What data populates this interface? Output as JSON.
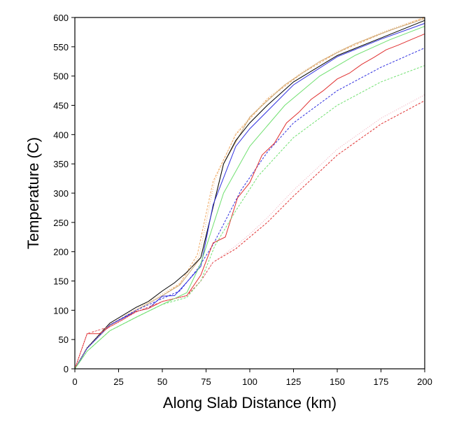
{
  "chart_data": {
    "type": "line",
    "title": "",
    "xlabel": "Along Slab Distance (km)",
    "ylabel": "Temperature (C)",
    "xlim": [
      0,
      200
    ],
    "ylim": [
      0,
      600
    ],
    "xticks": [
      0,
      25,
      50,
      75,
      100,
      125,
      150,
      175,
      200
    ],
    "yticks": [
      0,
      50,
      100,
      150,
      200,
      250,
      300,
      350,
      400,
      450,
      500,
      550,
      600
    ],
    "grid": false,
    "legend": "none",
    "series": [
      {
        "color": "#f0a860",
        "dash": "3,2",
        "points": [
          [
            0,
            0
          ],
          [
            7,
            35
          ],
          [
            20,
            75
          ],
          [
            35,
            100
          ],
          [
            50,
            125
          ],
          [
            60,
            145
          ],
          [
            70,
            195
          ],
          [
            79,
            320
          ],
          [
            92,
            400
          ],
          [
            110,
            460
          ],
          [
            130,
            505
          ],
          [
            150,
            540
          ],
          [
            175,
            572
          ],
          [
            200,
            600
          ]
        ]
      },
      {
        "color": "#c8a878",
        "dash": "",
        "points": [
          [
            0,
            0
          ],
          [
            7,
            35
          ],
          [
            20,
            74
          ],
          [
            35,
            100
          ],
          [
            50,
            125
          ],
          [
            60,
            143
          ],
          [
            72,
            190
          ],
          [
            85,
            350
          ],
          [
            100,
            430
          ],
          [
            120,
            485
          ],
          [
            140,
            525
          ],
          [
            160,
            555
          ],
          [
            180,
            578
          ],
          [
            200,
            598
          ]
        ]
      },
      {
        "color": "#000000",
        "dash": "",
        "points": [
          [
            0,
            0
          ],
          [
            7,
            36
          ],
          [
            20,
            78
          ],
          [
            35,
            105
          ],
          [
            42,
            115
          ],
          [
            50,
            133
          ],
          [
            57,
            147
          ],
          [
            64,
            165
          ],
          [
            72,
            190
          ],
          [
            85,
            350
          ],
          [
            92,
            390
          ],
          [
            100,
            420
          ],
          [
            110,
            450
          ],
          [
            125,
            490
          ],
          [
            150,
            535
          ],
          [
            175,
            565
          ],
          [
            200,
            595
          ]
        ]
      },
      {
        "color": "#3030e0",
        "dash": "3,2",
        "points": [
          [
            0,
            0
          ],
          [
            7,
            35
          ],
          [
            20,
            75
          ],
          [
            35,
            100
          ],
          [
            50,
            120
          ],
          [
            60,
            133
          ],
          [
            70,
            170
          ],
          [
            79,
            212
          ],
          [
            95,
            305
          ],
          [
            110,
            370
          ],
          [
            125,
            420
          ],
          [
            150,
            475
          ],
          [
            175,
            515
          ],
          [
            200,
            548
          ]
        ]
      },
      {
        "color": "#3030e0",
        "dash": "",
        "points": [
          [
            0,
            0
          ],
          [
            7,
            35
          ],
          [
            20,
            75
          ],
          [
            35,
            98
          ],
          [
            42,
            103
          ],
          [
            50,
            124
          ],
          [
            57,
            125
          ],
          [
            64,
            148
          ],
          [
            72,
            175
          ],
          [
            79,
            280
          ],
          [
            92,
            380
          ],
          [
            100,
            410
          ],
          [
            110,
            440
          ],
          [
            125,
            485
          ],
          [
            150,
            533
          ],
          [
            175,
            563
          ],
          [
            200,
            590
          ]
        ]
      },
      {
        "color": "#e03030",
        "dash": "",
        "points": [
          [
            0,
            0
          ],
          [
            7,
            60
          ],
          [
            14,
            60
          ],
          [
            20,
            72
          ],
          [
            28,
            85
          ],
          [
            35,
            98
          ],
          [
            42,
            103
          ],
          [
            50,
            115
          ],
          [
            57,
            120
          ],
          [
            64,
            125
          ],
          [
            72,
            160
          ],
          [
            79,
            215
          ],
          [
            86,
            225
          ],
          [
            93,
            292
          ],
          [
            100,
            318
          ],
          [
            107,
            365
          ],
          [
            114,
            385
          ],
          [
            121,
            420
          ],
          [
            128,
            438
          ],
          [
            135,
            460
          ],
          [
            142,
            475
          ],
          [
            150,
            495
          ],
          [
            157,
            505
          ],
          [
            164,
            520
          ],
          [
            171,
            532
          ],
          [
            178,
            545
          ],
          [
            185,
            553
          ],
          [
            192,
            562
          ],
          [
            200,
            572
          ]
        ]
      },
      {
        "color": "#e03030",
        "dash": "3,2",
        "points": [
          [
            0,
            0
          ],
          [
            7,
            60
          ],
          [
            20,
            72
          ],
          [
            35,
            97
          ],
          [
            50,
            115
          ],
          [
            64,
            125
          ],
          [
            72,
            150
          ],
          [
            79,
            182
          ],
          [
            92,
            205
          ],
          [
            100,
            225
          ],
          [
            110,
            250
          ],
          [
            125,
            295
          ],
          [
            150,
            365
          ],
          [
            175,
            418
          ],
          [
            200,
            458
          ]
        ]
      },
      {
        "color": "#70e070",
        "dash": "",
        "points": [
          [
            0,
            0
          ],
          [
            7,
            30
          ],
          [
            20,
            65
          ],
          [
            35,
            88
          ],
          [
            50,
            110
          ],
          [
            64,
            130
          ],
          [
            72,
            180
          ],
          [
            85,
            300
          ],
          [
            100,
            380
          ],
          [
            120,
            450
          ],
          [
            140,
            500
          ],
          [
            160,
            535
          ],
          [
            180,
            562
          ],
          [
            200,
            585
          ]
        ]
      },
      {
        "color": "#70e070",
        "dash": "3,2",
        "points": [
          [
            0,
            0
          ],
          [
            7,
            30
          ],
          [
            20,
            65
          ],
          [
            35,
            88
          ],
          [
            50,
            110
          ],
          [
            64,
            122
          ],
          [
            72,
            150
          ],
          [
            80,
            210
          ],
          [
            92,
            270
          ],
          [
            105,
            330
          ],
          [
            125,
            395
          ],
          [
            150,
            450
          ],
          [
            175,
            490
          ],
          [
            200,
            518
          ]
        ]
      },
      {
        "color": "#f0a8b8",
        "dash": "1,2",
        "points": [
          [
            0,
            0
          ],
          [
            7,
            60
          ],
          [
            20,
            72
          ],
          [
            35,
            97
          ],
          [
            50,
            115
          ],
          [
            64,
            125
          ],
          [
            72,
            150
          ],
          [
            79,
            182
          ],
          [
            92,
            210
          ],
          [
            100,
            230
          ],
          [
            110,
            258
          ],
          [
            125,
            305
          ],
          [
            150,
            375
          ],
          [
            175,
            428
          ],
          [
            200,
            468
          ]
        ]
      },
      {
        "color": "#f0b070",
        "dash": "1,2",
        "points": [
          [
            0,
            0
          ],
          [
            7,
            36
          ],
          [
            20,
            76
          ],
          [
            35,
            102
          ],
          [
            50,
            128
          ],
          [
            60,
            146
          ],
          [
            71,
            192
          ],
          [
            80,
            322
          ],
          [
            92,
            402
          ],
          [
            110,
            462
          ],
          [
            130,
            507
          ],
          [
            150,
            542
          ],
          [
            175,
            574
          ],
          [
            200,
            601
          ]
        ]
      }
    ]
  }
}
